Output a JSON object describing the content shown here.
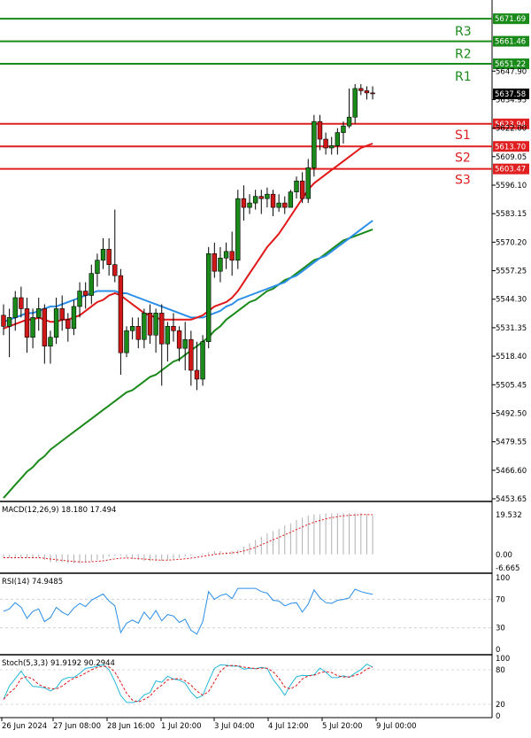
{
  "chart_data": {
    "type": "candlestick",
    "main": {
      "price_axis_labels": [
        "5647.90",
        "5634.95",
        "5622.00",
        "5609.05",
        "5596.10",
        "5583.15",
        "5570.20",
        "5557.25",
        "5544.30",
        "5531.35",
        "5518.40",
        "5505.45",
        "5492.50",
        "5479.55",
        "5466.60",
        "5453.65"
      ],
      "price_axis_values": [
        5647.9,
        5634.95,
        5622.0,
        5609.05,
        5596.1,
        5583.15,
        5570.2,
        5557.25,
        5544.3,
        5531.35,
        5518.4,
        5505.45,
        5492.5,
        5479.55,
        5466.6,
        5453.65
      ],
      "ylim": [
        5453.65,
        5680.2
      ],
      "current_price": "5637.58",
      "levels": [
        {
          "name": "R3",
          "value": 5671.69,
          "label": "5671.69",
          "color": "#1a8a1a"
        },
        {
          "name": "R2",
          "value": 5661.46,
          "label": "5661.46",
          "color": "#1a8a1a"
        },
        {
          "name": "R1",
          "value": 5651.22,
          "label": "5651.22",
          "color": "#1a8a1a"
        },
        {
          "name": "S1",
          "value": 5623.94,
          "label": "5623.94",
          "color": "#e02020"
        },
        {
          "name": "S2",
          "value": 5613.7,
          "label": "5613.70",
          "color": "#e02020"
        },
        {
          "name": "S3",
          "value": 5603.47,
          "label": "5603.47",
          "color": "#e02020"
        }
      ],
      "candles": [
        [
          5537,
          5542,
          5528,
          5532
        ],
        [
          5532,
          5540,
          5518,
          5536
        ],
        [
          5536,
          5548,
          5530,
          5545
        ],
        [
          5545,
          5550,
          5536,
          5540
        ],
        [
          5540,
          5545,
          5520,
          5527
        ],
        [
          5527,
          5540,
          5522,
          5536
        ],
        [
          5536,
          5545,
          5530,
          5540
        ],
        [
          5540,
          5542,
          5515,
          5523
        ],
        [
          5523,
          5530,
          5515,
          5527
        ],
        [
          5527,
          5545,
          5524,
          5540
        ],
        [
          5540,
          5546,
          5530,
          5535
        ],
        [
          5535,
          5538,
          5525,
          5531
        ],
        [
          5531,
          5544,
          5528,
          5541
        ],
        [
          5541,
          5552,
          5536,
          5548
        ],
        [
          5548,
          5552,
          5540,
          5546
        ],
        [
          5546,
          5560,
          5542,
          5556
        ],
        [
          5556,
          5565,
          5550,
          5562
        ],
        [
          5562,
          5572,
          5558,
          5567
        ],
        [
          5567,
          5572,
          5555,
          5560
        ],
        [
          5560,
          5585,
          5552,
          5555
        ],
        [
          5555,
          5558,
          5510,
          5520
        ],
        [
          5520,
          5532,
          5518,
          5530
        ],
        [
          5530,
          5536,
          5526,
          5532
        ],
        [
          5532,
          5536,
          5522,
          5526
        ],
        [
          5526,
          5540,
          5522,
          5538
        ],
        [
          5538,
          5542,
          5524,
          5528
        ],
        [
          5528,
          5540,
          5520,
          5538
        ],
        [
          5538,
          5542,
          5505,
          5524
        ],
        [
          5524,
          5534,
          5516,
          5532
        ],
        [
          5532,
          5538,
          5525,
          5530
        ],
        [
          5530,
          5532,
          5516,
          5522
        ],
        [
          5522,
          5534,
          5512,
          5526
        ],
        [
          5526,
          5530,
          5505,
          5512
        ],
        [
          5512,
          5525,
          5503,
          5508
        ],
        [
          5508,
          5528,
          5505,
          5525
        ],
        [
          5525,
          5568,
          5522,
          5565
        ],
        [
          5565,
          5570,
          5554,
          5557
        ],
        [
          5557,
          5568,
          5552,
          5563
        ],
        [
          5563,
          5570,
          5558,
          5566
        ],
        [
          5566,
          5575,
          5555,
          5562
        ],
        [
          5562,
          5594,
          5558,
          5590
        ],
        [
          5590,
          5596,
          5580,
          5586
        ],
        [
          5586,
          5592,
          5583,
          5588
        ],
        [
          5588,
          5594,
          5585,
          5591
        ],
        [
          5591,
          5594,
          5583,
          5590
        ],
        [
          5590,
          5595,
          5586,
          5592
        ],
        [
          5592,
          5594,
          5582,
          5586
        ],
        [
          5586,
          5592,
          5584,
          5588
        ],
        [
          5588,
          5591,
          5583,
          5586
        ],
        [
          5586,
          5594,
          5586,
          5593
        ],
        [
          5593,
          5600,
          5590,
          5598
        ],
        [
          5598,
          5602,
          5588,
          5590
        ],
        [
          5590,
          5608,
          5588,
          5604
        ],
        [
          5604,
          5628,
          5600,
          5625
        ],
        [
          5625,
          5628,
          5612,
          5617
        ],
        [
          5617,
          5620,
          5610,
          5613
        ],
        [
          5613,
          5618,
          5610,
          5614
        ],
        [
          5614,
          5622,
          5610,
          5620
        ],
        [
          5620,
          5625,
          5615,
          5623
        ],
        [
          5623,
          5640,
          5622,
          5627
        ],
        [
          5627,
          5642,
          5624,
          5640
        ],
        [
          5640,
          5642,
          5637,
          5639
        ],
        [
          5639,
          5641,
          5635,
          5638
        ],
        [
          5638,
          5641,
          5635,
          5637.58
        ]
      ],
      "ma_fast": [
        5531,
        5532,
        5533,
        5534,
        5535,
        5535,
        5536,
        5535,
        5534,
        5534,
        5535,
        5535,
        5536,
        5537,
        5539,
        5541,
        5543,
        5544,
        5546,
        5547,
        5546,
        5544,
        5542,
        5540,
        5538,
        5537,
        5536,
        5535,
        5535,
        5535,
        5535,
        5535,
        5535,
        5536,
        5537,
        5539,
        5541,
        5542,
        5543,
        5545,
        5548,
        5552,
        5556,
        5560,
        5564,
        5568,
        5571,
        5574,
        5578,
        5582,
        5586,
        5590,
        5594,
        5597,
        5599,
        5601,
        5603,
        5605,
        5607,
        5609,
        5611,
        5613,
        5614,
        5615
      ],
      "ma_mid": [
        5534,
        5535,
        5536,
        5537,
        5538,
        5538,
        5539,
        5540,
        5541,
        5541,
        5542,
        5543,
        5544,
        5545,
        5546,
        5547,
        5548,
        5548,
        5548,
        5548,
        5547,
        5547,
        5546,
        5545,
        5544,
        5543,
        5542,
        5541,
        5540,
        5539,
        5538,
        5537,
        5536,
        5536,
        5536,
        5537,
        5538,
        5539,
        5541,
        5542,
        5544,
        5545,
        5546,
        5547,
        5548,
        5549,
        5550,
        5551,
        5552,
        5554,
        5555,
        5557,
        5559,
        5561,
        5563,
        5564,
        5566,
        5568,
        5570,
        5572,
        5574,
        5576,
        5578,
        5580
      ],
      "ma_slow": [
        5454,
        5457,
        5460,
        5463,
        5466,
        5468,
        5471,
        5473,
        5476,
        5478,
        5480,
        5482,
        5484,
        5486,
        5488,
        5490,
        5492,
        5494,
        5496,
        5498,
        5500,
        5502,
        5503,
        5505,
        5507,
        5509,
        5510,
        5512,
        5514,
        5516,
        5517,
        5519,
        5521,
        5523,
        5525,
        5527,
        5530,
        5532,
        5535,
        5537,
        5539,
        5541,
        5543,
        5544,
        5546,
        5548,
        5549,
        5551,
        5553,
        5554,
        5556,
        5558,
        5560,
        5562,
        5563,
        5565,
        5567,
        5569,
        5571,
        5572,
        5573,
        5574,
        5575,
        5576
      ]
    },
    "macd": {
      "title": "MACD(12,26,9) 18.180 17.494",
      "axis_labels": [
        "19.532",
        "0.00",
        "-6.665"
      ],
      "axis_values": [
        19.532,
        0.0,
        -6.665
      ],
      "ylim": [
        -8,
        24
      ]
    },
    "rsi": {
      "title": "RSI(14) 74.9485",
      "axis_labels": [
        "100",
        "70",
        "30",
        "0"
      ],
      "axis_values": [
        100,
        70,
        30,
        0
      ],
      "ylim": [
        0,
        100
      ]
    },
    "stoch": {
      "title": "Stoch(5,3,3) 91.9192 90.2944",
      "axis_labels": [
        "100",
        "80",
        "20",
        "0"
      ],
      "axis_values": [
        100,
        80,
        20,
        0
      ],
      "ylim": [
        0,
        100
      ]
    },
    "x_labels": [
      "26 Jun 2024",
      "27 Jun 08:00",
      "28 Jun 16:00",
      "1 Jul 20:00",
      "3 Jul 04:00",
      "4 Jul 12:00",
      "5 Jul 20:00",
      "9 Jul 00:00"
    ],
    "colors": {
      "bull": "#1a8a1a",
      "bear": "#d01818",
      "ma_fast": "#e01818",
      "ma_mid": "#2a8ee8",
      "ma_slow": "#1a8a1a",
      "rsi_line": "#2a8ee8",
      "stoch_k": "#22b8d8",
      "stoch_d": "#e01818",
      "macd_hist": "#b0b0b0",
      "macd_signal": "#e01818"
    }
  }
}
